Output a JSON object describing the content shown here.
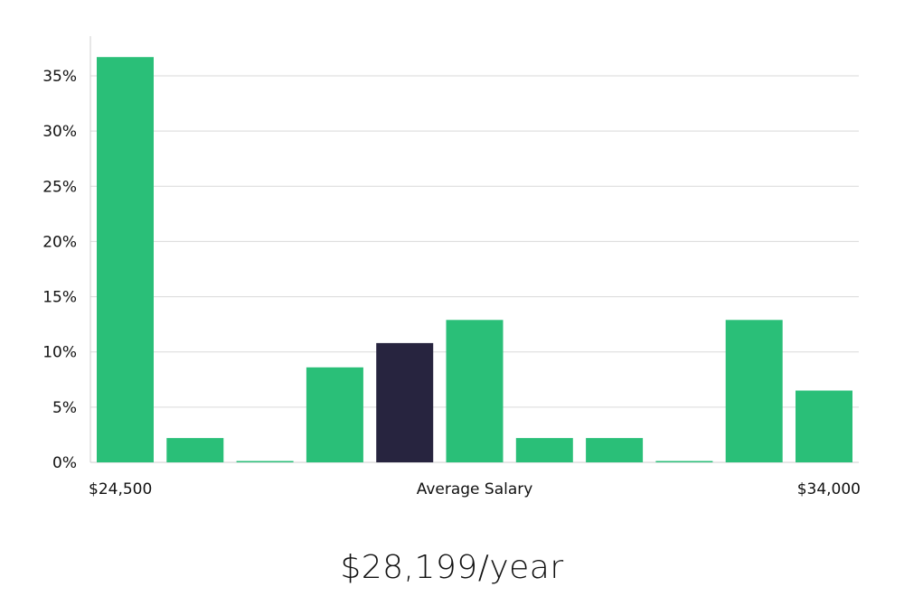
{
  "headline": "$28,199/year",
  "colors": {
    "bar": "#2abf78",
    "highlight": "#27243f",
    "grid": "#d9d9d9",
    "axis": "#cfcfcf",
    "text": "#111111"
  },
  "chart_data": {
    "type": "bar",
    "title": "",
    "xlabel": "Average Salary",
    "ylabel": "",
    "x_range_labels": {
      "min": "$24,500",
      "max": "$34,000"
    },
    "ylim": [
      0,
      38
    ],
    "yticks": [
      0,
      5,
      10,
      15,
      20,
      25,
      30,
      35
    ],
    "ytick_labels": [
      "0%",
      "5%",
      "10%",
      "15%",
      "20%",
      "25%",
      "30%",
      "35%"
    ],
    "grid": true,
    "highlight_index": 4,
    "values": [
      36.7,
      2.2,
      0,
      8.6,
      10.8,
      12.9,
      2.2,
      2.2,
      0,
      12.9,
      6.5
    ]
  }
}
